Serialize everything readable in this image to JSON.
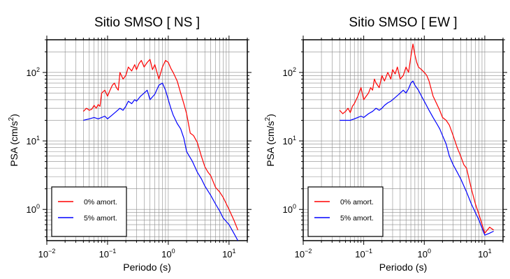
{
  "chart_data": [
    {
      "type": "line",
      "title": "Sitio SMSO [ NS ]",
      "xlabel": "Periodo (s)",
      "ylabel": "PSA (cm/s2)",
      "xscale": "log",
      "yscale": "log",
      "xlim": [
        0.01,
        20
      ],
      "ylim": [
        0.35,
        300
      ],
      "grid": true,
      "legend_position": "bottom-left",
      "x_ticks": [
        {
          "value": 0.01,
          "base": "10",
          "exp": "−2"
        },
        {
          "value": 0.1,
          "base": "10",
          "exp": "−1"
        },
        {
          "value": 1,
          "base": "10",
          "exp": "0"
        },
        {
          "value": 10,
          "base": "10",
          "exp": "1"
        }
      ],
      "y_ticks": [
        {
          "value": 1,
          "base": "10",
          "exp": "0"
        },
        {
          "value": 10,
          "base": "10",
          "exp": "1"
        },
        {
          "value": 100,
          "base": "10",
          "exp": "2"
        }
      ],
      "series": [
        {
          "name": "0% amort.",
          "color": "#ff0000",
          "x": [
            0.04,
            0.045,
            0.05,
            0.055,
            0.06,
            0.065,
            0.07,
            0.075,
            0.08,
            0.09,
            0.1,
            0.11,
            0.12,
            0.13,
            0.14,
            0.15,
            0.16,
            0.18,
            0.2,
            0.22,
            0.25,
            0.28,
            0.3,
            0.33,
            0.36,
            0.4,
            0.45,
            0.5,
            0.55,
            0.6,
            0.7,
            0.8,
            0.9,
            1.0,
            1.1,
            1.2,
            1.4,
            1.6,
            1.8,
            2.0,
            2.3,
            2.6,
            3.0,
            3.5,
            4.0,
            4.5,
            5.0,
            6.0,
            7.0,
            8.0,
            10.0,
            12.0,
            14.0
          ],
          "values": [
            27,
            30,
            28,
            29,
            33,
            30,
            34,
            32,
            50,
            55,
            45,
            55,
            65,
            70,
            60,
            55,
            100,
            80,
            90,
            120,
            105,
            130,
            110,
            135,
            150,
            120,
            140,
            155,
            110,
            130,
            80,
            120,
            150,
            140,
            115,
            100,
            75,
            50,
            35,
            25,
            13,
            12,
            9.5,
            6,
            4.2,
            3.5,
            3.1,
            2.1,
            1.8,
            1.5,
            1.0,
            0.7,
            0.5
          ]
        },
        {
          "name": "5% amort.",
          "color": "#0000ff",
          "x": [
            0.04,
            0.05,
            0.06,
            0.07,
            0.08,
            0.09,
            0.1,
            0.12,
            0.14,
            0.16,
            0.18,
            0.2,
            0.22,
            0.25,
            0.28,
            0.3,
            0.35,
            0.4,
            0.45,
            0.5,
            0.6,
            0.7,
            0.8,
            0.9,
            1.0,
            1.1,
            1.2,
            1.4,
            1.6,
            1.8,
            2.0,
            2.5,
            3.0,
            3.5,
            4.0,
            5.0,
            6.0,
            7.0,
            8.0,
            10.0,
            12.0,
            14.0
          ],
          "values": [
            20,
            21,
            22,
            21,
            22,
            23,
            21,
            24,
            27,
            30,
            28,
            32,
            38,
            35,
            40,
            38,
            45,
            50,
            55,
            40,
            48,
            65,
            70,
            55,
            40,
            30,
            24,
            18,
            15,
            11,
            7,
            5,
            3.5,
            2.8,
            2.2,
            1.6,
            1.2,
            0.95,
            0.75,
            0.6,
            0.45,
            0.35
          ]
        }
      ]
    },
    {
      "type": "line",
      "title": "Sitio SMSO [ EW ]",
      "xlabel": "Periodo (s)",
      "ylabel": "PSA (cm/s2)",
      "xscale": "log",
      "yscale": "log",
      "xlim": [
        0.01,
        20
      ],
      "ylim": [
        0.35,
        300
      ],
      "grid": true,
      "legend_position": "bottom-left",
      "x_ticks": [
        {
          "value": 0.01,
          "base": "10",
          "exp": "−2"
        },
        {
          "value": 0.1,
          "base": "10",
          "exp": "−1"
        },
        {
          "value": 1,
          "base": "10",
          "exp": "0"
        },
        {
          "value": 10,
          "base": "10",
          "exp": "1"
        }
      ],
      "y_ticks": [
        {
          "value": 1,
          "base": "10",
          "exp": "0"
        },
        {
          "value": 10,
          "base": "10",
          "exp": "1"
        },
        {
          "value": 100,
          "base": "10",
          "exp": "2"
        }
      ],
      "series": [
        {
          "name": "0% amort.",
          "color": "#ff0000",
          "x": [
            0.04,
            0.045,
            0.05,
            0.055,
            0.06,
            0.065,
            0.07,
            0.08,
            0.09,
            0.1,
            0.11,
            0.12,
            0.13,
            0.14,
            0.15,
            0.16,
            0.18,
            0.2,
            0.22,
            0.25,
            0.28,
            0.3,
            0.33,
            0.36,
            0.4,
            0.45,
            0.5,
            0.55,
            0.6,
            0.65,
            0.7,
            0.75,
            0.8,
            0.9,
            1.0,
            1.1,
            1.2,
            1.4,
            1.6,
            1.8,
            2.0,
            2.3,
            2.6,
            3.0,
            3.5,
            4.0,
            4.5,
            5.0,
            6.0,
            7.0,
            8.0,
            10.0,
            12.0,
            14.0
          ],
          "values": [
            28,
            25,
            27,
            30,
            26,
            32,
            35,
            45,
            60,
            40,
            45,
            50,
            60,
            55,
            80,
            70,
            60,
            90,
            75,
            100,
            80,
            110,
            95,
            120,
            80,
            90,
            120,
            100,
            170,
            260,
            180,
            140,
            120,
            110,
            100,
            90,
            75,
            45,
            35,
            28,
            22,
            20,
            17,
            12,
            8,
            6,
            4.5,
            4.0,
            2.0,
            1.2,
            0.85,
            0.45,
            0.55,
            0.5
          ]
        },
        {
          "name": "5% amort.",
          "color": "#0000ff",
          "x": [
            0.04,
            0.05,
            0.06,
            0.07,
            0.08,
            0.09,
            0.1,
            0.12,
            0.14,
            0.16,
            0.18,
            0.2,
            0.22,
            0.25,
            0.28,
            0.3,
            0.35,
            0.4,
            0.45,
            0.5,
            0.55,
            0.6,
            0.65,
            0.7,
            0.8,
            0.9,
            1.0,
            1.2,
            1.4,
            1.6,
            1.8,
            2.0,
            2.3,
            2.6,
            3.0,
            3.5,
            4.0,
            5.0,
            6.0,
            7.0,
            8.0,
            10.0,
            12.0,
            14.0
          ],
          "values": [
            20,
            20,
            20,
            21,
            22,
            23,
            22,
            25,
            27,
            30,
            28,
            30,
            33,
            36,
            38,
            40,
            45,
            50,
            55,
            50,
            58,
            70,
            75,
            65,
            55,
            45,
            38,
            28,
            22,
            18,
            15,
            12,
            9,
            6,
            4.5,
            3.5,
            2.8,
            1.8,
            1.2,
            0.9,
            0.7,
            0.42,
            0.45,
            0.48
          ]
        }
      ]
    }
  ]
}
